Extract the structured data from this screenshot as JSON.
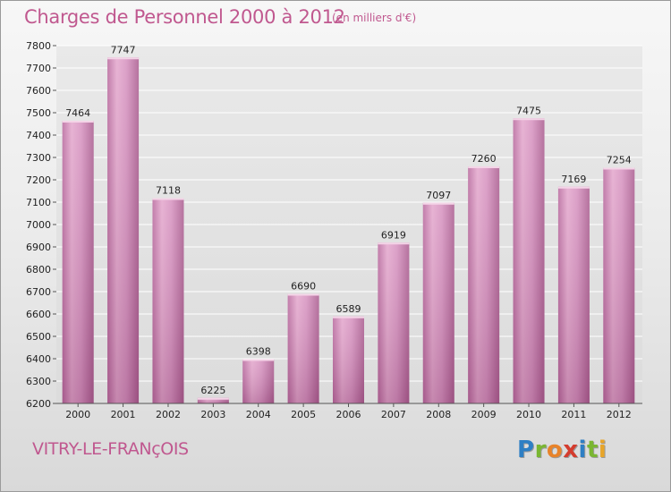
{
  "header": {
    "title": "Charges de Personnel 2000 à 2012",
    "subtitle": "(en milliers d'€)"
  },
  "footer": {
    "town": "VITRY-LE-FRANçOIS",
    "logo_letters": [
      "P",
      "r",
      "o",
      "x",
      "i",
      "t",
      "i"
    ]
  },
  "colors": {
    "bar": "#d08ab8",
    "bar_highlight": "#e8b4d4",
    "bar_shadow": "#b05f92",
    "grid": "#ffffff",
    "accent": "#c0588f"
  },
  "chart_data": {
    "type": "bar",
    "title": "Charges de Personnel 2000 à 2012",
    "subtitle": "(en milliers d'€)",
    "xlabel": "",
    "ylabel": "",
    "categories": [
      "2000",
      "2001",
      "2002",
      "2003",
      "2004",
      "2005",
      "2006",
      "2007",
      "2008",
      "2009",
      "2010",
      "2011",
      "2012"
    ],
    "values": [
      7464,
      7747,
      7118,
      6225,
      6398,
      6690,
      6589,
      6919,
      7097,
      7260,
      7475,
      7169,
      7254
    ],
    "ylim": [
      6200,
      7800
    ],
    "yticks": [
      6200,
      6300,
      6400,
      6500,
      6600,
      6700,
      6800,
      6900,
      7000,
      7100,
      7200,
      7300,
      7400,
      7500,
      7600,
      7700,
      7800
    ],
    "grid": true,
    "legend": "none"
  }
}
